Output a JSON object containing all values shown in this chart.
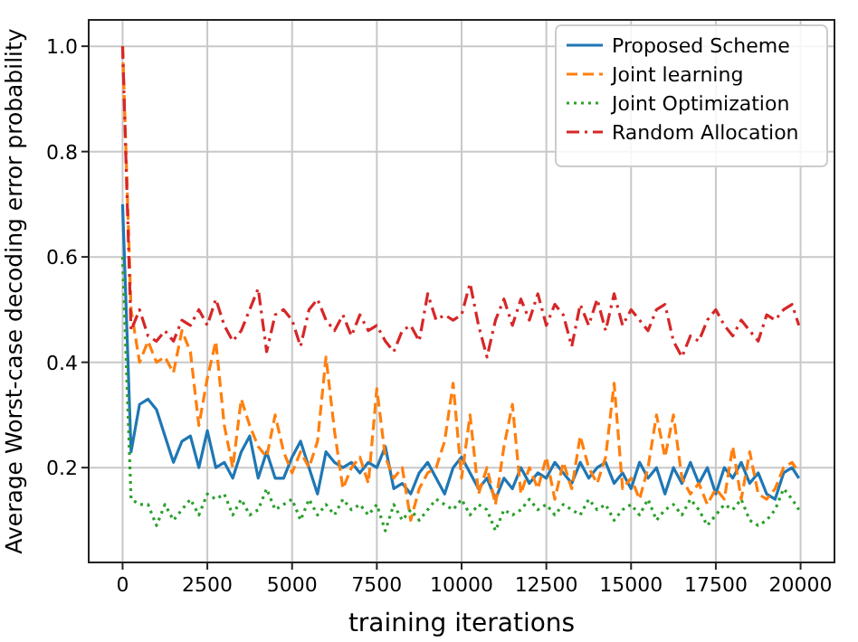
{
  "chart_data": {
    "type": "line",
    "xlabel": "training iterations",
    "ylabel": "Average Worst-case decoding error probability",
    "x": [
      0,
      250,
      500,
      750,
      1000,
      1250,
      1500,
      1750,
      2000,
      2250,
      2500,
      2750,
      3000,
      3250,
      3500,
      3750,
      4000,
      4250,
      4500,
      4750,
      5000,
      5250,
      5500,
      5750,
      6000,
      6250,
      6500,
      6750,
      7000,
      7250,
      7500,
      7750,
      8000,
      8250,
      8500,
      8750,
      9000,
      9250,
      9500,
      9750,
      10000,
      10250,
      10500,
      10750,
      11000,
      11250,
      11500,
      11750,
      12000,
      12250,
      12500,
      12750,
      13000,
      13250,
      13500,
      13750,
      14000,
      14250,
      14500,
      14750,
      15000,
      15250,
      15500,
      15750,
      16000,
      16250,
      16500,
      16750,
      17000,
      17250,
      17500,
      17750,
      18000,
      18250,
      18500,
      18750,
      19000,
      19250,
      19500,
      19750,
      19950
    ],
    "series": [
      {
        "name": "Proposed Scheme",
        "color": "#1f77b4",
        "line_style": "solid",
        "values": [
          0.7,
          0.23,
          0.32,
          0.33,
          0.31,
          0.26,
          0.21,
          0.25,
          0.26,
          0.2,
          0.27,
          0.2,
          0.21,
          0.18,
          0.23,
          0.26,
          0.18,
          0.23,
          0.18,
          0.18,
          0.22,
          0.25,
          0.2,
          0.15,
          0.23,
          0.21,
          0.2,
          0.21,
          0.19,
          0.21,
          0.2,
          0.24,
          0.16,
          0.17,
          0.15,
          0.19,
          0.21,
          0.18,
          0.15,
          0.2,
          0.22,
          0.19,
          0.16,
          0.18,
          0.14,
          0.18,
          0.16,
          0.2,
          0.17,
          0.19,
          0.18,
          0.21,
          0.19,
          0.17,
          0.21,
          0.18,
          0.2,
          0.21,
          0.17,
          0.19,
          0.16,
          0.21,
          0.18,
          0.2,
          0.15,
          0.2,
          0.17,
          0.21,
          0.17,
          0.2,
          0.15,
          0.2,
          0.18,
          0.21,
          0.17,
          0.19,
          0.15,
          0.14,
          0.19,
          0.2,
          0.18
        ]
      },
      {
        "name": "Joint learning",
        "color": "#ff7f0e",
        "line_style": "dashed",
        "values": [
          1.0,
          0.5,
          0.4,
          0.44,
          0.4,
          0.41,
          0.38,
          0.46,
          0.42,
          0.28,
          0.37,
          0.44,
          0.28,
          0.2,
          0.33,
          0.28,
          0.24,
          0.22,
          0.3,
          0.23,
          0.19,
          0.23,
          0.2,
          0.25,
          0.41,
          0.27,
          0.16,
          0.2,
          0.22,
          0.17,
          0.35,
          0.22,
          0.18,
          0.2,
          0.1,
          0.16,
          0.19,
          0.2,
          0.25,
          0.36,
          0.18,
          0.3,
          0.15,
          0.2,
          0.13,
          0.24,
          0.32,
          0.15,
          0.2,
          0.16,
          0.22,
          0.14,
          0.21,
          0.16,
          0.26,
          0.2,
          0.17,
          0.22,
          0.36,
          0.16,
          0.18,
          0.14,
          0.2,
          0.3,
          0.22,
          0.3,
          0.18,
          0.15,
          0.17,
          0.13,
          0.16,
          0.14,
          0.24,
          0.14,
          0.23,
          0.15,
          0.14,
          0.16,
          0.2,
          0.21,
          0.19
        ]
      },
      {
        "name": "Joint Optimization",
        "color": "#2ca02c",
        "line_style": "dotted",
        "values": [
          0.6,
          0.14,
          0.13,
          0.13,
          0.09,
          0.13,
          0.1,
          0.12,
          0.14,
          0.11,
          0.15,
          0.14,
          0.15,
          0.11,
          0.14,
          0.11,
          0.12,
          0.16,
          0.12,
          0.13,
          0.14,
          0.1,
          0.14,
          0.11,
          0.13,
          0.11,
          0.14,
          0.12,
          0.13,
          0.11,
          0.13,
          0.08,
          0.13,
          0.1,
          0.12,
          0.1,
          0.12,
          0.14,
          0.13,
          0.12,
          0.14,
          0.11,
          0.13,
          0.12,
          0.08,
          0.12,
          0.11,
          0.12,
          0.14,
          0.12,
          0.13,
          0.11,
          0.13,
          0.12,
          0.11,
          0.14,
          0.12,
          0.13,
          0.1,
          0.12,
          0.13,
          0.11,
          0.14,
          0.1,
          0.12,
          0.13,
          0.11,
          0.14,
          0.12,
          0.09,
          0.11,
          0.13,
          0.12,
          0.14,
          0.1,
          0.09,
          0.1,
          0.12,
          0.16,
          0.14,
          0.12
        ]
      },
      {
        "name": "Random Allocation",
        "color": "#d62728",
        "line_style": "dashdot",
        "values": [
          1.0,
          0.46,
          0.5,
          0.45,
          0.44,
          0.46,
          0.44,
          0.48,
          0.47,
          0.5,
          0.47,
          0.52,
          0.47,
          0.44,
          0.46,
          0.5,
          0.54,
          0.42,
          0.49,
          0.5,
          0.48,
          0.43,
          0.5,
          0.52,
          0.48,
          0.46,
          0.49,
          0.45,
          0.49,
          0.46,
          0.47,
          0.44,
          0.42,
          0.46,
          0.47,
          0.44,
          0.53,
          0.48,
          0.49,
          0.48,
          0.49,
          0.55,
          0.47,
          0.41,
          0.48,
          0.52,
          0.47,
          0.52,
          0.48,
          0.53,
          0.47,
          0.51,
          0.49,
          0.43,
          0.51,
          0.47,
          0.52,
          0.46,
          0.53,
          0.47,
          0.5,
          0.48,
          0.46,
          0.5,
          0.51,
          0.44,
          0.41,
          0.45,
          0.44,
          0.48,
          0.5,
          0.47,
          0.45,
          0.48,
          0.46,
          0.44,
          0.49,
          0.48,
          0.5,
          0.51,
          0.47
        ]
      }
    ],
    "xlim": [
      -1000,
      21000
    ],
    "xticks": [
      0,
      2500,
      5000,
      7500,
      10000,
      12500,
      15000,
      17500,
      20000
    ],
    "ylim": [
      0.02,
      1.05
    ],
    "yticks": [
      {
        "value": 0.2,
        "label": "0.2"
      },
      {
        "value": 0.4,
        "label": "0.4"
      },
      {
        "value": 0.6,
        "label": "0.6"
      },
      {
        "value": 0.8,
        "label": "0.8"
      },
      {
        "value": 1.0,
        "label": "1.0"
      }
    ],
    "grid": true,
    "legend": "top right"
  }
}
